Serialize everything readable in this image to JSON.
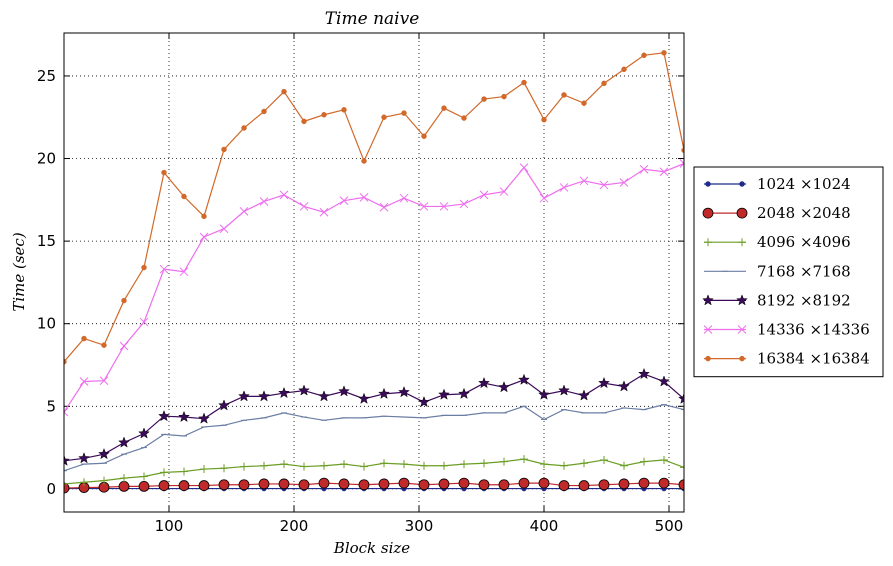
{
  "chart_data": {
    "type": "line",
    "title": "Time naive",
    "xlabel": "Block size",
    "ylabel": "Time (sec)",
    "xlim": [
      16,
      512
    ],
    "ylim": [
      -1.4,
      27.6
    ],
    "xticks": [
      100,
      200,
      300,
      400,
      500
    ],
    "yticks": [
      0,
      5,
      10,
      15,
      20,
      25
    ],
    "grid": true,
    "legend_position": "right",
    "x": [
      16,
      32,
      48,
      64,
      80,
      96,
      112,
      128,
      144,
      160,
      176,
      192,
      208,
      224,
      240,
      256,
      272,
      288,
      304,
      320,
      336,
      352,
      368,
      384,
      400,
      416,
      432,
      448,
      464,
      480,
      496,
      512
    ],
    "series": [
      {
        "name": "1024 ×1024",
        "color": "#1f2a8a",
        "marker": "dot",
        "values": [
          0.02,
          0.02,
          0.02,
          0.02,
          0.02,
          0.02,
          0.02,
          0.02,
          0.02,
          0.02,
          0.02,
          0.02,
          0.02,
          0.02,
          0.02,
          0.02,
          0.02,
          0.02,
          0.02,
          0.02,
          0.02,
          0.02,
          0.02,
          0.02,
          0.02,
          0.02,
          0.02,
          0.02,
          0.02,
          0.02,
          0.02,
          0.02
        ]
      },
      {
        "name": "2048 ×2048",
        "color": "#c02a2a",
        "marker": "circle",
        "values": [
          0.05,
          0.08,
          0.1,
          0.15,
          0.15,
          0.2,
          0.2,
          0.2,
          0.25,
          0.25,
          0.3,
          0.3,
          0.25,
          0.35,
          0.3,
          0.25,
          0.3,
          0.35,
          0.25,
          0.3,
          0.35,
          0.25,
          0.25,
          0.35,
          0.35,
          0.2,
          0.2,
          0.25,
          0.3,
          0.35,
          0.35,
          0.25
        ]
      },
      {
        "name": "4096 ×4096",
        "color": "#6b9e24",
        "marker": "plus",
        "values": [
          0.3,
          0.4,
          0.5,
          0.65,
          0.75,
          1.0,
          1.05,
          1.2,
          1.25,
          1.35,
          1.4,
          1.5,
          1.35,
          1.4,
          1.5,
          1.35,
          1.55,
          1.5,
          1.4,
          1.4,
          1.5,
          1.55,
          1.65,
          1.8,
          1.5,
          1.4,
          1.55,
          1.75,
          1.4,
          1.65,
          1.75,
          1.3
        ]
      },
      {
        "name": "7168 ×7168",
        "color": "#6b7ea4",
        "marker": "tick",
        "values": [
          1.1,
          1.5,
          1.55,
          2.1,
          2.5,
          3.3,
          3.2,
          3.75,
          3.85,
          4.15,
          4.3,
          4.6,
          4.35,
          4.15,
          4.3,
          4.3,
          4.4,
          4.35,
          4.3,
          4.45,
          4.45,
          4.6,
          4.6,
          5.0,
          4.2,
          4.8,
          4.6,
          4.6,
          4.9,
          4.8,
          5.1,
          4.8
        ]
      },
      {
        "name": "8192 ×8192",
        "color": "#3c0a5a",
        "marker": "star",
        "values": [
          1.7,
          1.85,
          2.1,
          2.8,
          3.35,
          4.4,
          4.35,
          4.25,
          5.05,
          5.6,
          5.6,
          5.8,
          5.95,
          5.6,
          5.9,
          5.45,
          5.75,
          5.85,
          5.25,
          5.7,
          5.75,
          6.4,
          6.15,
          6.6,
          5.7,
          5.95,
          5.65,
          6.4,
          6.2,
          6.95,
          6.5,
          5.45
        ]
      },
      {
        "name": "14336 ×14336",
        "color": "#ee6eee",
        "marker": "x",
        "values": [
          4.65,
          6.5,
          6.55,
          8.65,
          10.1,
          13.3,
          13.15,
          15.25,
          15.75,
          16.8,
          17.4,
          17.8,
          17.1,
          16.75,
          17.45,
          17.65,
          17.05,
          17.6,
          17.1,
          17.1,
          17.25,
          17.8,
          18.0,
          19.45,
          17.6,
          18.25,
          18.65,
          18.4,
          18.55,
          19.35,
          19.2,
          19.7
        ]
      },
      {
        "name": "16384 ×16384",
        "color": "#d2692a",
        "marker": "dot",
        "values": [
          7.7,
          9.1,
          8.7,
          11.4,
          13.4,
          19.15,
          17.7,
          16.5,
          20.55,
          21.85,
          22.85,
          24.05,
          22.25,
          22.65,
          22.95,
          19.85,
          22.5,
          22.75,
          21.35,
          23.05,
          22.45,
          23.6,
          23.75,
          24.6,
          22.35,
          23.85,
          23.35,
          24.55,
          25.4,
          26.25,
          26.4,
          20.5
        ]
      }
    ]
  }
}
